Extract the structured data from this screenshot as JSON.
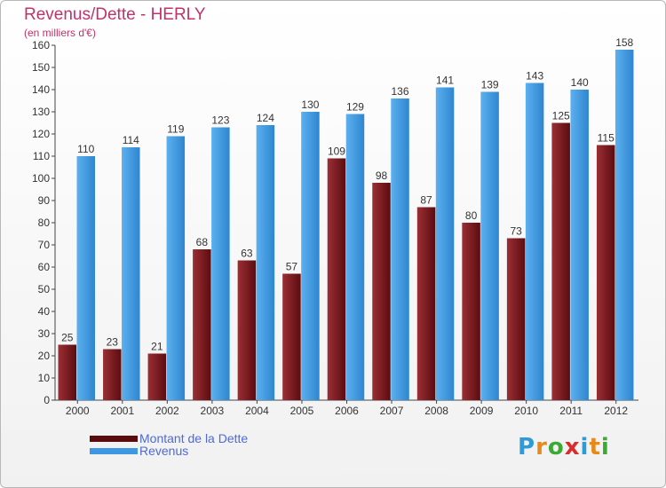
{
  "header": {
    "title": "Revenus/Dette - HERLY",
    "subtitle": "(en milliers d'€)"
  },
  "chart_data": {
    "type": "bar",
    "title": "Revenus/Dette - HERLY",
    "ylabel": "(en milliers d'€)",
    "categories": [
      "2000",
      "2001",
      "2002",
      "2003",
      "2004",
      "2005",
      "2006",
      "2007",
      "2008",
      "2009",
      "2010",
      "2011",
      "2012"
    ],
    "series": [
      {
        "name": "Montant de la Dette",
        "color": "#7a1d22",
        "values": [
          25,
          23,
          21,
          68,
          63,
          57,
          109,
          98,
          87,
          80,
          73,
          125,
          115
        ]
      },
      {
        "name": "Revenus",
        "color": "#3d97e1",
        "values": [
          110,
          114,
          119,
          123,
          124,
          130,
          129,
          136,
          141,
          139,
          143,
          140,
          158
        ]
      }
    ],
    "ylim": [
      0,
      160
    ],
    "ytick_step": 10,
    "grid": false,
    "legend_position": "bottom-left"
  },
  "legend": {
    "items": [
      {
        "label": "Montant de la Dette",
        "color": "#5a0a0c"
      },
      {
        "label": "Revenus",
        "color": "#3d97e1"
      }
    ]
  },
  "logo": {
    "letters": [
      {
        "ch": "P",
        "color": "#2e9bd6"
      },
      {
        "ch": "r",
        "color": "#e88a1a"
      },
      {
        "ch": "o",
        "color": "#3aaa35"
      },
      {
        "ch": "x",
        "color": "#d92c2c"
      },
      {
        "ch": "i",
        "color": "#2e9bd6"
      },
      {
        "ch": "t",
        "color": "#e88a1a"
      },
      {
        "ch": "i",
        "color": "#3aaa35"
      }
    ]
  }
}
